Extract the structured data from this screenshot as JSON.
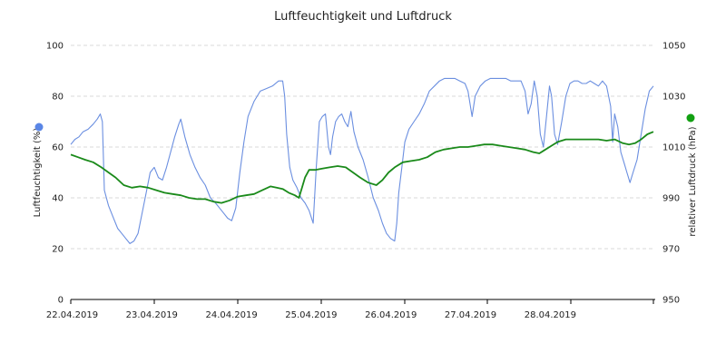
{
  "chart_data": {
    "type": "line",
    "title": "Luftfeuchtigkeit und Luftdruck",
    "x_ticks": [
      "22.04.2019",
      "23.04.2019",
      "24.04.2019",
      "25.04.2019",
      "26.04.2019",
      "27.04.2019",
      "28.04.2019"
    ],
    "x_range_days": [
      21.583,
      28.917
    ],
    "y_left": {
      "label": "Luftfeuchtigkeit (%)",
      "range": [
        0,
        100
      ],
      "ticks": [
        "0",
        "20",
        "40",
        "60",
        "80",
        "100"
      ]
    },
    "y_right": {
      "label": "relativer Luftdruck (hPa)",
      "range": [
        950,
        1050
      ],
      "ticks": [
        "950",
        "970",
        "990",
        "1010",
        "1030",
        "1050"
      ]
    },
    "grid": true,
    "series": [
      {
        "name": "Luftfeuchtigkeit (%)",
        "axis": "left",
        "color": "#6b8fe0",
        "points": [
          [
            21.58,
            61
          ],
          [
            21.62,
            63
          ],
          [
            21.66,
            64
          ],
          [
            21.7,
            66
          ],
          [
            21.75,
            67
          ],
          [
            21.8,
            69
          ],
          [
            21.84,
            71
          ],
          [
            21.87,
            73
          ],
          [
            21.89,
            70
          ],
          [
            21.91,
            43
          ],
          [
            21.95,
            37
          ],
          [
            22.0,
            32
          ],
          [
            22.04,
            28
          ],
          [
            22.08,
            26
          ],
          [
            22.12,
            24
          ],
          [
            22.16,
            22
          ],
          [
            22.2,
            23
          ],
          [
            22.24,
            26
          ],
          [
            22.28,
            34
          ],
          [
            22.32,
            42
          ],
          [
            22.36,
            50
          ],
          [
            22.4,
            52
          ],
          [
            22.44,
            48
          ],
          [
            22.48,
            47
          ],
          [
            22.52,
            52
          ],
          [
            22.56,
            58
          ],
          [
            22.6,
            64
          ],
          [
            22.64,
            69
          ],
          [
            22.66,
            71
          ],
          [
            22.7,
            64
          ],
          [
            22.75,
            57
          ],
          [
            22.8,
            52
          ],
          [
            22.85,
            48
          ],
          [
            22.9,
            45
          ],
          [
            22.95,
            40
          ],
          [
            23.0,
            38
          ],
          [
            23.04,
            36
          ],
          [
            23.08,
            34
          ],
          [
            23.12,
            32
          ],
          [
            23.16,
            31
          ],
          [
            23.2,
            36
          ],
          [
            23.24,
            50
          ],
          [
            23.28,
            62
          ],
          [
            23.32,
            72
          ],
          [
            23.38,
            78
          ],
          [
            23.44,
            82
          ],
          [
            23.5,
            83
          ],
          [
            23.56,
            84
          ],
          [
            23.62,
            86
          ],
          [
            23.66,
            86
          ],
          [
            23.68,
            80
          ],
          [
            23.7,
            65
          ],
          [
            23.73,
            52
          ],
          [
            23.76,
            47
          ],
          [
            23.8,
            44
          ],
          [
            23.84,
            40
          ],
          [
            23.88,
            38
          ],
          [
            23.92,
            35
          ],
          [
            23.96,
            30
          ],
          [
            23.99,
            52
          ],
          [
            24.02,
            70
          ],
          [
            24.05,
            72
          ],
          [
            24.08,
            73
          ],
          [
            24.11,
            60
          ],
          [
            24.13,
            57
          ],
          [
            24.15,
            64
          ],
          [
            24.18,
            70
          ],
          [
            24.21,
            72
          ],
          [
            24.24,
            73
          ],
          [
            24.27,
            70
          ],
          [
            24.3,
            68
          ],
          [
            24.33,
            74
          ],
          [
            24.36,
            66
          ],
          [
            24.4,
            60
          ],
          [
            24.45,
            55
          ],
          [
            24.5,
            48
          ],
          [
            24.55,
            40
          ],
          [
            24.6,
            35
          ],
          [
            24.64,
            30
          ],
          [
            24.68,
            26
          ],
          [
            24.72,
            24
          ],
          [
            24.76,
            23
          ],
          [
            24.78,
            30
          ],
          [
            24.8,
            42
          ],
          [
            24.83,
            52
          ],
          [
            24.86,
            62
          ],
          [
            24.9,
            67
          ],
          [
            24.95,
            70
          ],
          [
            25.0,
            73
          ],
          [
            25.05,
            77
          ],
          [
            25.1,
            82
          ],
          [
            25.15,
            84
          ],
          [
            25.2,
            86
          ],
          [
            25.25,
            87
          ],
          [
            25.3,
            87
          ],
          [
            25.35,
            87
          ],
          [
            25.4,
            86
          ],
          [
            25.45,
            85
          ],
          [
            25.48,
            82
          ],
          [
            25.52,
            72
          ],
          [
            25.55,
            80
          ],
          [
            25.6,
            84
          ],
          [
            25.65,
            86
          ],
          [
            25.7,
            87
          ],
          [
            25.75,
            87
          ],
          [
            25.8,
            87
          ],
          [
            25.85,
            87
          ],
          [
            25.9,
            86
          ],
          [
            25.95,
            86
          ],
          [
            26.0,
            86
          ],
          [
            26.04,
            82
          ],
          [
            26.07,
            73
          ],
          [
            26.1,
            77
          ],
          [
            26.13,
            86
          ],
          [
            26.16,
            80
          ],
          [
            26.19,
            65
          ],
          [
            26.22,
            60
          ],
          [
            26.25,
            72
          ],
          [
            26.28,
            84
          ],
          [
            26.3,
            80
          ],
          [
            26.33,
            65
          ],
          [
            26.36,
            61
          ],
          [
            26.4,
            70
          ],
          [
            26.44,
            80
          ],
          [
            26.48,
            85
          ],
          [
            26.52,
            86
          ],
          [
            26.56,
            86
          ],
          [
            26.6,
            85
          ],
          [
            26.64,
            85
          ],
          [
            26.68,
            86
          ],
          [
            26.72,
            85
          ],
          [
            26.76,
            84
          ],
          [
            26.8,
            86
          ],
          [
            26.84,
            84
          ],
          [
            26.88,
            76
          ],
          [
            26.9,
            62
          ],
          [
            26.92,
            73
          ],
          [
            26.95,
            68
          ],
          [
            26.98,
            58
          ],
          [
            27.01,
            54
          ],
          [
            27.04,
            50
          ],
          [
            27.07,
            46
          ],
          [
            27.1,
            50
          ],
          [
            27.14,
            55
          ],
          [
            27.18,
            65
          ],
          [
            27.22,
            75
          ],
          [
            27.26,
            82
          ],
          [
            27.3,
            84
          ]
        ]
      },
      {
        "name": "relativer Luftdruck (hPa)",
        "axis": "right",
        "color": "#1a8a1a",
        "points": [
          [
            21.58,
            1007
          ],
          [
            21.65,
            1006
          ],
          [
            21.72,
            1005
          ],
          [
            21.8,
            1004
          ],
          [
            21.88,
            1002
          ],
          [
            21.95,
            1000
          ],
          [
            22.02,
            998
          ],
          [
            22.1,
            995
          ],
          [
            22.18,
            994
          ],
          [
            22.26,
            994.5
          ],
          [
            22.34,
            994
          ],
          [
            22.42,
            993
          ],
          [
            22.5,
            992
          ],
          [
            22.58,
            991.5
          ],
          [
            22.66,
            991
          ],
          [
            22.74,
            990
          ],
          [
            22.82,
            989.5
          ],
          [
            22.9,
            989.5
          ],
          [
            22.98,
            988.5
          ],
          [
            23.06,
            988
          ],
          [
            23.14,
            989
          ],
          [
            23.22,
            990.5
          ],
          [
            23.3,
            991
          ],
          [
            23.38,
            991.5
          ],
          [
            23.46,
            993
          ],
          [
            23.54,
            994.5
          ],
          [
            23.6,
            994
          ],
          [
            23.66,
            993.5
          ],
          [
            23.72,
            992
          ],
          [
            23.78,
            991
          ],
          [
            23.82,
            990
          ],
          [
            23.85,
            994
          ],
          [
            23.88,
            998
          ],
          [
            23.92,
            1001
          ],
          [
            23.98,
            1001
          ],
          [
            24.05,
            1001.5
          ],
          [
            24.12,
            1002
          ],
          [
            24.2,
            1002.5
          ],
          [
            24.28,
            1002
          ],
          [
            24.35,
            1000
          ],
          [
            24.42,
            998
          ],
          [
            24.5,
            996
          ],
          [
            24.58,
            995
          ],
          [
            24.64,
            997
          ],
          [
            24.7,
            1000
          ],
          [
            24.76,
            1002
          ],
          [
            24.84,
            1004
          ],
          [
            24.92,
            1004.5
          ],
          [
            25.0,
            1005
          ],
          [
            25.08,
            1006
          ],
          [
            25.16,
            1008
          ],
          [
            25.24,
            1009
          ],
          [
            25.32,
            1009.5
          ],
          [
            25.4,
            1010
          ],
          [
            25.48,
            1010
          ],
          [
            25.56,
            1010.5
          ],
          [
            25.64,
            1011
          ],
          [
            25.72,
            1011
          ],
          [
            25.8,
            1010.5
          ],
          [
            25.88,
            1010
          ],
          [
            25.96,
            1009.5
          ],
          [
            26.04,
            1009
          ],
          [
            26.12,
            1008
          ],
          [
            26.18,
            1007.5
          ],
          [
            26.22,
            1008.5
          ],
          [
            26.28,
            1010
          ],
          [
            26.36,
            1012
          ],
          [
            26.44,
            1013
          ],
          [
            26.52,
            1013
          ],
          [
            26.6,
            1013
          ],
          [
            26.68,
            1013
          ],
          [
            26.76,
            1013
          ],
          [
            26.84,
            1012.5
          ],
          [
            26.92,
            1013
          ],
          [
            27.0,
            1011.5
          ],
          [
            27.06,
            1011
          ],
          [
            27.12,
            1011.5
          ],
          [
            27.18,
            1013
          ],
          [
            27.24,
            1015
          ],
          [
            27.3,
            1016
          ]
        ]
      }
    ],
    "markers": {
      "left_color": "#5a86e6",
      "right_color": "#12a012"
    }
  }
}
